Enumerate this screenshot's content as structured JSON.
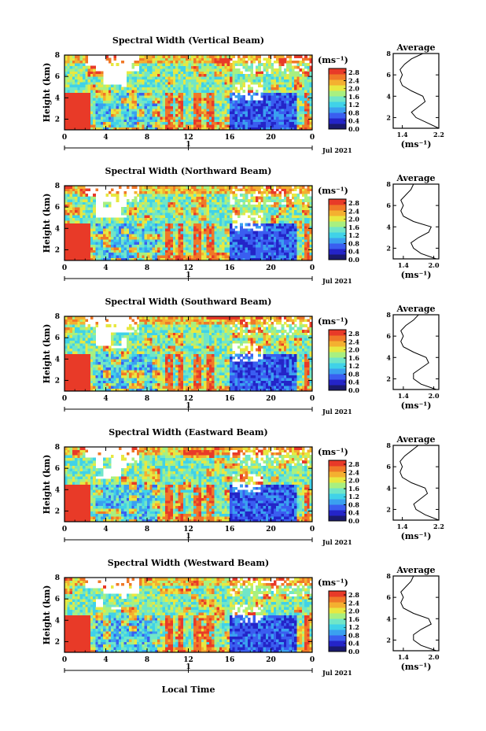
{
  "xlabel": "Local Time",
  "colorbar": {
    "unit": "(ms⁻¹)",
    "tick_labels": [
      "0.0",
      "0.4",
      "0.8",
      "1.2",
      "1.6",
      "2.0",
      "2.4",
      "2.8"
    ],
    "ticks": [
      0.0,
      0.4,
      0.8,
      1.2,
      1.6,
      2.0,
      2.4,
      2.8
    ],
    "range": [
      0.0,
      3.0
    ],
    "colors": [
      "#1a1a6e",
      "#2424c8",
      "#3a5ef0",
      "#3aa0f0",
      "#40d2e8",
      "#70e6c8",
      "#a8f080",
      "#e8e840",
      "#f4b030",
      "#f07828",
      "#e83a28"
    ]
  },
  "chart_data": [
    {
      "type": "heatmap",
      "title": "Spectral Width (Vertical Beam)",
      "ylabel": "Height (km)",
      "x_ticks": [
        "0",
        "4",
        "8",
        "12",
        "16",
        "20",
        "0"
      ],
      "x_range": [
        0,
        24
      ],
      "y_ticks": [
        "2",
        "4",
        "6",
        "8"
      ],
      "y_range": [
        1,
        8
      ],
      "date_marker": "1",
      "date_label": "Jul 2021",
      "profile": {
        "title": "Average",
        "xlabel": "(ms⁻¹)",
        "x_ticks": [
          "1.4",
          "2.2"
        ],
        "xlim": [
          1.2,
          2.2
        ],
        "y_ticks": [
          "2",
          "4",
          "6",
          "8"
        ],
        "height": [
          1.0,
          1.5,
          2.0,
          2.5,
          3.0,
          3.5,
          4.0,
          4.5,
          5.0,
          5.5,
          6.0,
          6.5,
          7.0,
          7.5,
          8.0
        ],
        "width": [
          2.2,
          1.95,
          1.7,
          1.6,
          1.75,
          1.9,
          1.85,
          1.6,
          1.4,
          1.35,
          1.4,
          1.35,
          1.45,
          1.6,
          1.85
        ]
      }
    },
    {
      "type": "heatmap",
      "title": "Spectral Width (Northward Beam)",
      "ylabel": "Height (km)",
      "x_ticks": [
        "0",
        "4",
        "8",
        "12",
        "16",
        "20",
        "0"
      ],
      "x_range": [
        0,
        24
      ],
      "y_ticks": [
        "2",
        "4",
        "6",
        "8"
      ],
      "y_range": [
        1,
        8
      ],
      "date_marker": "1",
      "date_label": "Jul 2021",
      "profile": {
        "title": "Average",
        "xlabel": "(ms⁻¹)",
        "x_ticks": [
          "1.4",
          "2.0"
        ],
        "xlim": [
          1.2,
          2.1
        ],
        "y_ticks": [
          "2",
          "4",
          "6",
          "8"
        ],
        "height": [
          1.0,
          1.5,
          2.0,
          2.5,
          3.0,
          3.5,
          4.0,
          4.5,
          5.0,
          5.5,
          6.0,
          6.5,
          7.0,
          7.5,
          8.0
        ],
        "width": [
          2.05,
          1.75,
          1.6,
          1.55,
          1.7,
          1.9,
          1.95,
          1.6,
          1.4,
          1.35,
          1.4,
          1.35,
          1.45,
          1.55,
          1.6
        ]
      }
    },
    {
      "type": "heatmap",
      "title": "Spectral Width (Southward Beam)",
      "ylabel": "Height (km)",
      "x_ticks": [
        "0",
        "4",
        "8",
        "12",
        "16",
        "20",
        "0"
      ],
      "x_range": [
        0,
        24
      ],
      "y_ticks": [
        "2",
        "4",
        "6",
        "8"
      ],
      "y_range": [
        1,
        8
      ],
      "date_marker": "1",
      "date_label": "Jul 2021",
      "profile": {
        "title": "Average",
        "xlabel": "(ms⁻¹)",
        "x_ticks": [
          "1.4",
          "2.0"
        ],
        "xlim": [
          1.2,
          2.1
        ],
        "y_ticks": [
          "2",
          "4",
          "6",
          "8"
        ],
        "height": [
          1.0,
          1.5,
          2.0,
          2.5,
          3.0,
          3.5,
          4.0,
          4.5,
          5.0,
          5.5,
          6.0,
          6.5,
          7.0,
          7.5,
          8.0
        ],
        "width": [
          2.05,
          1.75,
          1.6,
          1.6,
          1.75,
          1.9,
          1.85,
          1.6,
          1.4,
          1.35,
          1.4,
          1.35,
          1.45,
          1.6,
          1.7
        ]
      }
    },
    {
      "type": "heatmap",
      "title": "Spectral Width (Eastward Beam)",
      "ylabel": "Height (km)",
      "x_ticks": [
        "0",
        "4",
        "8",
        "12",
        "16",
        "20",
        "0"
      ],
      "x_range": [
        0,
        24
      ],
      "y_ticks": [
        "2",
        "4",
        "6",
        "8"
      ],
      "y_range": [
        1,
        8
      ],
      "date_marker": "1",
      "date_label": "Jul 2021",
      "profile": {
        "title": "Average",
        "xlabel": "(ms⁻¹)",
        "x_ticks": [
          "1.4",
          "2.2"
        ],
        "xlim": [
          1.2,
          2.2
        ],
        "y_ticks": [
          "2",
          "4",
          "6",
          "8"
        ],
        "height": [
          1.0,
          1.5,
          2.0,
          2.5,
          3.0,
          3.5,
          4.0,
          4.5,
          5.0,
          5.5,
          6.0,
          6.5,
          7.0,
          7.5,
          8.0
        ],
        "width": [
          2.2,
          1.9,
          1.7,
          1.65,
          1.8,
          1.95,
          1.9,
          1.6,
          1.4,
          1.35,
          1.4,
          1.35,
          1.45,
          1.6,
          1.75
        ]
      }
    },
    {
      "type": "heatmap",
      "title": "Spectral Width (Westward Beam)",
      "ylabel": "Height (km)",
      "x_ticks": [
        "0",
        "4",
        "8",
        "12",
        "16",
        "20",
        "0"
      ],
      "x_range": [
        0,
        24
      ],
      "y_ticks": [
        "2",
        "4",
        "6",
        "8"
      ],
      "y_range": [
        1,
        8
      ],
      "date_marker": "1",
      "date_label": "Jul 2021",
      "profile": {
        "title": "Average",
        "xlabel": "(ms⁻¹)",
        "x_ticks": [
          "1.4",
          "2.0"
        ],
        "xlim": [
          1.2,
          2.1
        ],
        "y_ticks": [
          "2",
          "4",
          "6",
          "8"
        ],
        "height": [
          1.0,
          1.5,
          2.0,
          2.5,
          3.0,
          3.5,
          4.0,
          4.5,
          5.0,
          5.5,
          6.0,
          6.5,
          7.0,
          7.5,
          8.0
        ],
        "width": [
          2.05,
          1.75,
          1.6,
          1.6,
          1.75,
          1.95,
          1.9,
          1.6,
          1.4,
          1.35,
          1.4,
          1.35,
          1.45,
          1.55,
          1.6
        ]
      }
    }
  ]
}
